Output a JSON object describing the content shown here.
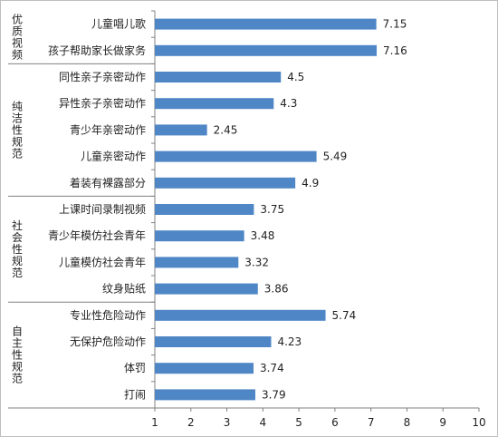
{
  "chart_data": {
    "type": "bar",
    "orientation": "horizontal",
    "title": "",
    "xlabel": "",
    "ylabel": "",
    "xlim": [
      1,
      10
    ],
    "xticks": [
      1,
      2,
      3,
      4,
      5,
      6,
      7,
      8,
      9,
      10
    ],
    "grid": false,
    "legend": "none",
    "bar_color": "#4f86c6",
    "groups": [
      {
        "name": "优质视频",
        "categories": [
          "儿童唱儿歌",
          "孩子帮助家长做家务"
        ]
      },
      {
        "name": "纯洁性规范",
        "categories": [
          "同性亲子亲密动作",
          "异性亲子亲密动作",
          "青少年亲密动作",
          "儿童亲密动作",
          "着装有裸露部分"
        ]
      },
      {
        "name": "社会性规范",
        "categories": [
          "上课时间录制视频",
          "青少年模仿社会青年",
          "儿童模仿社会青年",
          "纹身贴纸"
        ]
      },
      {
        "name": "自主性规范",
        "categories": [
          "专业性危险动作",
          "无保护危险动作",
          "体罚",
          "打闹"
        ]
      }
    ],
    "categories": [
      "儿童唱儿歌",
      "孩子帮助家长做家务",
      "同性亲子亲密动作",
      "异性亲子亲密动作",
      "青少年亲密动作",
      "儿童亲密动作",
      "着装有裸露部分",
      "上课时间录制视频",
      "青少年模仿社会青年",
      "儿童模仿社会青年",
      "纹身贴纸",
      "专业性危险动作",
      "无保护危险动作",
      "体罚",
      "打闹"
    ],
    "values": [
      7.15,
      7.16,
      4.5,
      4.3,
      2.45,
      5.49,
      4.9,
      3.75,
      3.48,
      3.32,
      3.86,
      5.74,
      4.23,
      3.74,
      3.79
    ]
  }
}
